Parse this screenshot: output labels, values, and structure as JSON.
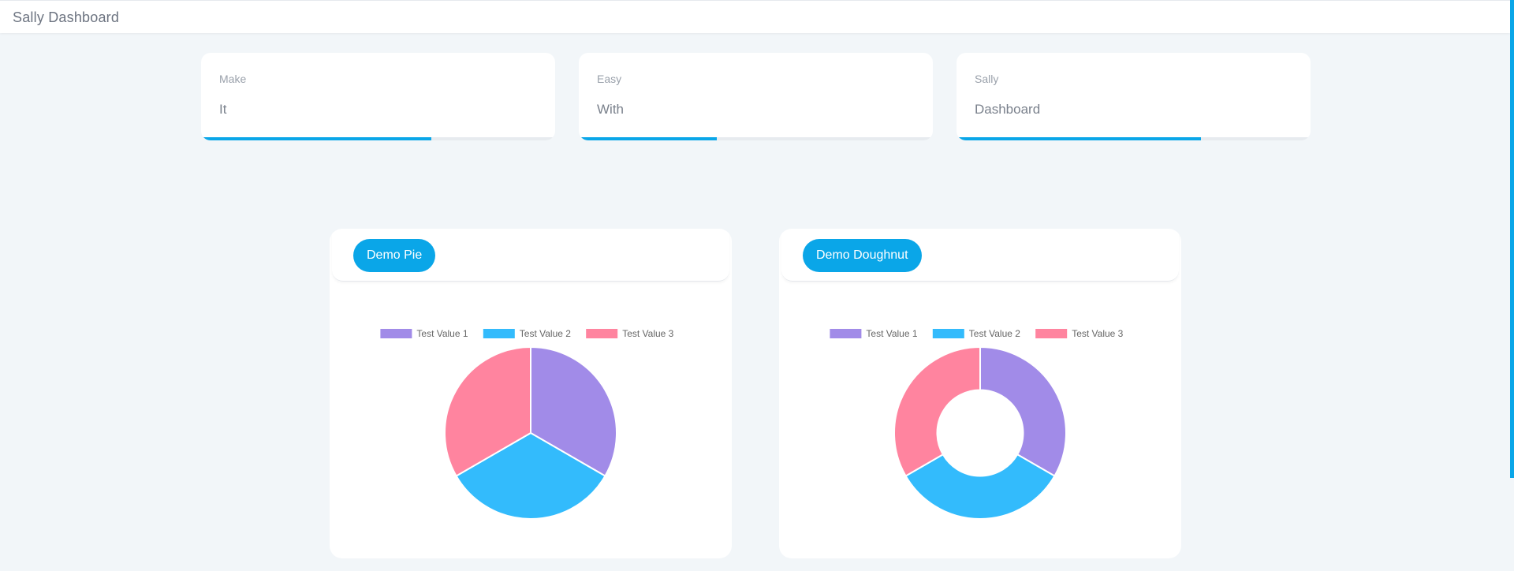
{
  "header": {
    "title": "Sally Dashboard"
  },
  "stat_cards": [
    {
      "label": "Make",
      "value": "It",
      "progress": 0.65
    },
    {
      "label": "Easy",
      "value": "With",
      "progress": 0.39
    },
    {
      "label": "Sally",
      "value": "Dashboard",
      "progress": 0.69
    }
  ],
  "colors": {
    "accent": "#0aa6e8",
    "background": "#f2f6f9",
    "series": [
      "#a18be8",
      "#33bbfc",
      "#ff849f"
    ]
  },
  "chart_data": [
    {
      "type": "pie",
      "title": "Demo Pie",
      "categories": [
        "Test Value 1",
        "Test Value 2",
        "Test Value 3"
      ],
      "values": [
        1,
        1,
        1
      ],
      "legend": "top"
    },
    {
      "type": "doughnut",
      "title": "Demo Doughnut",
      "categories": [
        "Test Value 1",
        "Test Value 2",
        "Test Value 3"
      ],
      "values": [
        1,
        1,
        1
      ],
      "legend": "top"
    }
  ]
}
